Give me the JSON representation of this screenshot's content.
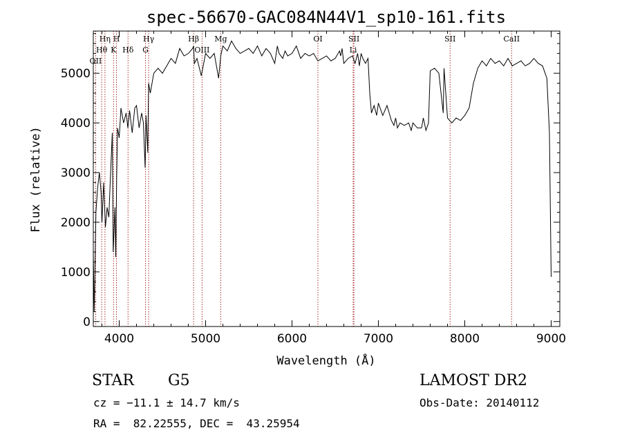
{
  "info": {
    "object_class": "STAR",
    "subclass": "G5",
    "survey": "LAMOST DR2",
    "redshift_text": "cz = −11.1 ± 14.7 km/s",
    "obs_date_text": "Obs-Date: 20140112",
    "coords_text": "RA =  82.22555, DEC =  43.25954"
  },
  "chart_data": {
    "type": "line",
    "title": "spec-56670-GAC084N44V1_sp10-161.fits",
    "xlabel": "Wavelength (Å)",
    "ylabel": "Flux (relative)",
    "xlim": [
      3700,
      9100
    ],
    "ylim": [
      -100,
      5850
    ],
    "x_ticks": [
      4000,
      5000,
      6000,
      7000,
      8000,
      9000
    ],
    "y_ticks": [
      0,
      1000,
      2000,
      3000,
      4000,
      5000
    ],
    "grid": false,
    "colors": {
      "spectrum": "#000000",
      "lines": "#a52a2a"
    },
    "series": [
      {
        "x": [
          3700,
          3710,
          3730,
          3750,
          3770,
          3790,
          3800,
          3820,
          3840,
          3860,
          3880,
          3900,
          3920,
          3930,
          3950,
          3960,
          3970,
          3980,
          4000,
          4020,
          4050,
          4080,
          4100,
          4120,
          4150,
          4180,
          4200,
          4230,
          4260,
          4280,
          4300,
          4310,
          4330,
          4340,
          4360,
          4400,
          4450,
          4500,
          4550,
          4600,
          4650,
          4700,
          4750,
          4800,
          4850,
          4861,
          4870,
          4900,
          4950,
          5000,
          5050,
          5100,
          5150,
          5175,
          5200,
          5250,
          5300,
          5350,
          5400,
          5450,
          5500,
          5550,
          5600,
          5650,
          5700,
          5750,
          5800,
          5830,
          5850,
          5893,
          5920,
          5950,
          6000,
          6050,
          6100,
          6150,
          6200,
          6250,
          6300,
          6350,
          6400,
          6450,
          6500,
          6550,
          6563,
          6580,
          6600,
          6650,
          6700,
          6730,
          6760,
          6780,
          6800,
          6820,
          6850,
          6880,
          6900,
          6920,
          6950,
          6980,
          7000,
          7050,
          7100,
          7150,
          7180,
          7200,
          7220,
          7250,
          7300,
          7350,
          7380,
          7400,
          7450,
          7500,
          7520,
          7550,
          7580,
          7600,
          7650,
          7700,
          7750,
          7760,
          7800,
          7850,
          7900,
          7950,
          8000,
          8050,
          8100,
          8150,
          8200,
          8250,
          8300,
          8350,
          8400,
          8450,
          8500,
          8550,
          8600,
          8650,
          8700,
          8750,
          8800,
          8850,
          8900,
          8950,
          8980,
          9000
        ],
        "y": [
          1400,
          200,
          2200,
          2700,
          3000,
          2600,
          2000,
          2800,
          1900,
          2300,
          2100,
          3000,
          3800,
          1400,
          2300,
          1300,
          2900,
          3900,
          3700,
          4300,
          4000,
          4200,
          3900,
          4250,
          3800,
          4300,
          4350,
          3900,
          4200,
          4000,
          3100,
          4150,
          3400,
          4800,
          4600,
          5000,
          5100,
          5000,
          5150,
          5300,
          5200,
          5500,
          5350,
          5400,
          5500,
          5550,
          5200,
          5300,
          4950,
          5400,
          5300,
          5400,
          4900,
          5350,
          5550,
          5450,
          5650,
          5500,
          5400,
          5450,
          5500,
          5400,
          5550,
          5350,
          5500,
          5400,
          5200,
          5550,
          5400,
          5300,
          5450,
          5350,
          5400,
          5550,
          5300,
          5400,
          5350,
          5400,
          5250,
          5300,
          5350,
          5250,
          5300,
          5450,
          5350,
          5500,
          5200,
          5300,
          5350,
          5200,
          5400,
          5150,
          5400,
          5300,
          5200,
          5300,
          4600,
          4200,
          4350,
          4150,
          4400,
          4150,
          4350,
          4050,
          3950,
          4100,
          3900,
          4000,
          3950,
          4000,
          3850,
          4000,
          3900,
          3900,
          4100,
          3850,
          4000,
          5050,
          5100,
          5000,
          4200,
          5100,
          4100,
          4000,
          4100,
          4050,
          4150,
          4300,
          4800,
          5100,
          5250,
          5150,
          5300,
          5200,
          5250,
          5150,
          5300,
          5150,
          5200,
          5250,
          5150,
          5200,
          5300,
          5200,
          5150,
          4900,
          3800,
          900
        ]
      }
    ],
    "line_markers": [
      {
        "label": "Hη",
        "x": 3835
      },
      {
        "label": "Hθ",
        "x": 3797
      },
      {
        "label": "OII",
        "x": 3727
      },
      {
        "label": "H",
        "x": 3968
      },
      {
        "label": "K",
        "x": 3934
      },
      {
        "label": "Hδ",
        "x": 4102
      },
      {
        "label": "Hγ",
        "x": 4341
      },
      {
        "label": "G",
        "x": 4304
      },
      {
        "label": "Hβ",
        "x": 4861
      },
      {
        "label": "OIII",
        "x": 4959
      },
      {
        "label": "Mg",
        "x": 5175
      },
      {
        "label": "OI",
        "x": 6300
      },
      {
        "label": "SII",
        "x": 6717
      },
      {
        "label": "Li",
        "x": 6708
      },
      {
        "label": "SII",
        "x": 7830
      },
      {
        "label": "CaII",
        "x": 8542
      }
    ]
  }
}
